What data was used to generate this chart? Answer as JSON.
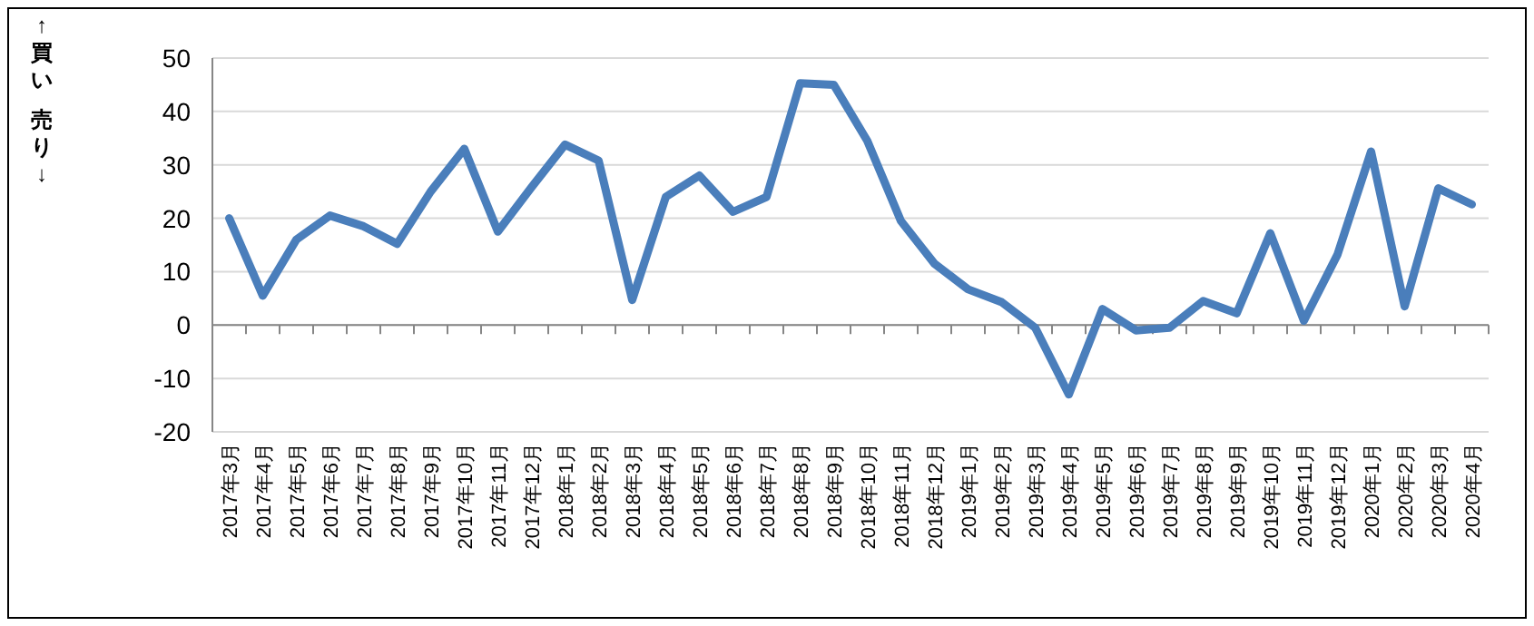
{
  "chart_data": {
    "type": "line",
    "annotations": [
      "↑買い",
      "売り↓"
    ],
    "categories": [
      "2017年3月",
      "2017年4月",
      "2017年5月",
      "2017年6月",
      "2017年7月",
      "2017年8月",
      "2017年9月",
      "2017年10月",
      "2017年11月",
      "2017年12月",
      "2018年1月",
      "2018年2月",
      "2018年3月",
      "2018年4月",
      "2018年5月",
      "2018年6月",
      "2018年7月",
      "2018年8月",
      "2018年9月",
      "2018年10月",
      "2018年11月",
      "2018年12月",
      "2019年1月",
      "2019年2月",
      "2019年3月",
      "2019年4月",
      "2019年5月",
      "2019年6月",
      "2019年7月",
      "2019年8月",
      "2019年9月",
      "2019年10月",
      "2019年11月",
      "2019年12月",
      "2020年1月",
      "2020年2月",
      "2020年3月",
      "2020年4月"
    ],
    "series": [
      {
        "color": "#4a7ebb",
        "values": [
          20,
          5.5,
          16,
          20.5,
          18.5,
          15.2,
          25,
          33,
          17.5,
          25.8,
          33.8,
          30.8,
          4.7,
          24,
          28,
          21.2,
          24,
          45.3,
          45,
          34.5,
          19.5,
          11.5,
          6.7,
          4.3,
          -0.5,
          -13,
          3,
          -1,
          -0.5,
          4.5,
          2.2,
          17.2,
          0.8,
          13.2,
          32.5,
          3.5,
          25.6,
          22.6
        ]
      }
    ],
    "ylim": [
      -20,
      50
    ],
    "yticks": [
      -20,
      -10,
      0,
      10,
      20,
      30,
      40,
      50
    ],
    "grid": "y",
    "marker": "none",
    "line_style": "solid"
  }
}
